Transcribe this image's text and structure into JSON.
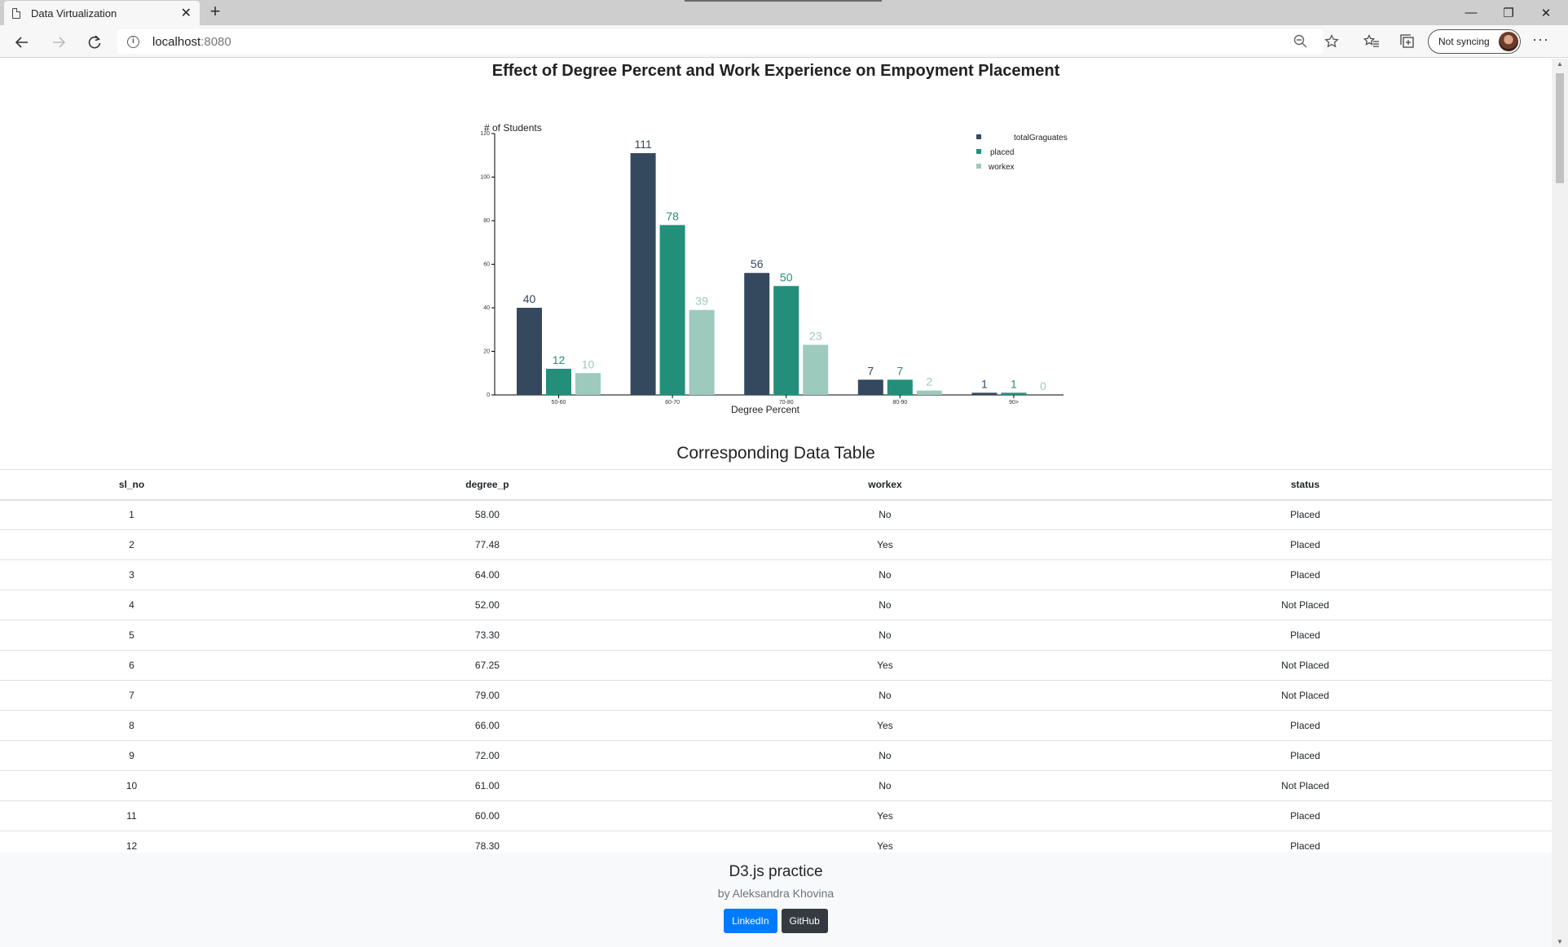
{
  "browser": {
    "tab_title": "Data Virtualization",
    "tab_close": "✕",
    "new_tab": "+",
    "address_host": "localhost",
    "address_port": ":8080",
    "sync_label": "Not syncing",
    "more": "···",
    "minimize": "—",
    "restore": "❐",
    "close": "✕"
  },
  "chart_data": {
    "type": "bar",
    "title": "Effect of Degree Percent and Work Experience on Empoyment Placement",
    "xlabel": "Degree Percent",
    "ylabel": "# of Students",
    "ylim": [
      0,
      120
    ],
    "yticks": [
      0,
      20,
      40,
      60,
      80,
      100,
      120
    ],
    "categories": [
      "50-60",
      "60-70",
      "70-80",
      "80-90",
      "90>"
    ],
    "series": [
      {
        "name": "totalGraguates",
        "color": "#34495e",
        "values": [
          40,
          111,
          56,
          7,
          1
        ]
      },
      {
        "name": "placed",
        "color": "#238f7b",
        "values": [
          12,
          78,
          50,
          7,
          1
        ]
      },
      {
        "name": "workex",
        "color": "#9ccabd",
        "values": [
          10,
          39,
          23,
          2,
          0
        ]
      }
    ],
    "legend_position": "top-right"
  },
  "table": {
    "title": "Corresponding Data Table",
    "headers": [
      "sl_no",
      "degree_p",
      "workex",
      "status"
    ],
    "rows": [
      [
        "1",
        "58.00",
        "No",
        "Placed"
      ],
      [
        "2",
        "77.48",
        "Yes",
        "Placed"
      ],
      [
        "3",
        "64.00",
        "No",
        "Placed"
      ],
      [
        "4",
        "52.00",
        "No",
        "Not Placed"
      ],
      [
        "5",
        "73.30",
        "No",
        "Placed"
      ],
      [
        "6",
        "67.25",
        "Yes",
        "Not Placed"
      ],
      [
        "7",
        "79.00",
        "No",
        "Not Placed"
      ],
      [
        "8",
        "66.00",
        "Yes",
        "Placed"
      ],
      [
        "9",
        "72.00",
        "No",
        "Placed"
      ],
      [
        "10",
        "61.00",
        "No",
        "Not Placed"
      ],
      [
        "11",
        "60.00",
        "Yes",
        "Placed"
      ],
      [
        "12",
        "78.30",
        "Yes",
        "Placed"
      ]
    ]
  },
  "footer": {
    "title": "D3.js practice",
    "subtitle": "by Aleksandra Khovina",
    "linkedin_label": "LinkedIn",
    "github_label": "GitHub"
  }
}
